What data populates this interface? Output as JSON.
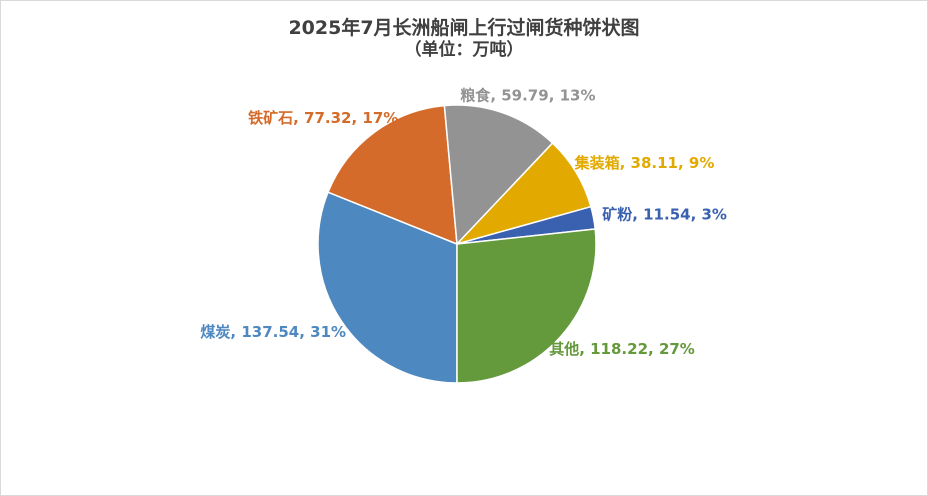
{
  "chart_data": {
    "type": "pie",
    "title": "2025年7月长洲船闸上行过闸货种饼状图",
    "subtitle": "（单位：万吨）",
    "categories": [
      "煤炭",
      "铁矿石",
      "粮食",
      "集装箱",
      "矿粉",
      "其他"
    ],
    "values": [
      137.54,
      77.32,
      59.79,
      38.11,
      11.54,
      118.22
    ],
    "percentages": [
      "31%",
      "17%",
      "13%",
      "9%",
      "3%",
      "27%"
    ],
    "colors": [
      "#4E88C0",
      "#D46B2A",
      "#939393",
      "#E2AA00",
      "#3A60B0",
      "#64993C"
    ],
    "show_legend": false,
    "label_position": "outside-end"
  },
  "colors": {
    "title": "#404040",
    "border": "#D9D9D9",
    "background": "#FFFFFF"
  }
}
